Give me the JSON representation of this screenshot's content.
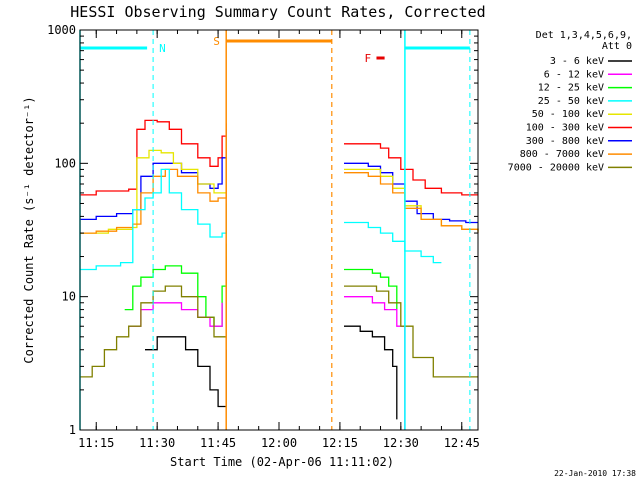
{
  "chart_data": {
    "type": "line",
    "title": "HESSI Observing Summary Count Rates, Corrected",
    "xlabel": "Start Time (02-Apr-06 11:11:02)",
    "ylabel": "Corrected Count Rate (s⁻¹ detector⁻¹)",
    "xlim": [
      "11:11",
      "12:49"
    ],
    "ylim": [
      1,
      1000
    ],
    "yscale": "log",
    "x_ticks": [
      "11:15",
      "11:30",
      "11:45",
      "12:00",
      "12:15",
      "12:30",
      "12:45"
    ],
    "y_ticks": [
      "1",
      "10",
      "100",
      "1000"
    ],
    "timestamp": "22-Jan-2010 17:38",
    "legend": {
      "placement": "right",
      "header": [
        "Det 1,3,4,5,6,9,",
        "Att 0"
      ],
      "entries": [
        {
          "label": "3 - 6 keV",
          "color": "#000000"
        },
        {
          "label": "6 - 12 keV",
          "color": "#ff00ff"
        },
        {
          "label": "12 - 25 keV",
          "color": "#00ff00"
        },
        {
          "label": "25 - 50 keV",
          "color": "#00ffff"
        },
        {
          "label": "50 - 100 keV",
          "color": "#e6e600"
        },
        {
          "label": "100 - 300 keV",
          "color": "#ff0000"
        },
        {
          "label": "300 - 800 keV",
          "color": "#0000ff"
        },
        {
          "label": "800 - 7000 keV",
          "color": "#ff8c00"
        },
        {
          "label": "7000 - 20000 keV",
          "color": "#808000"
        }
      ]
    },
    "markers": {
      "n_label": "N",
      "s_label": "S",
      "f_label": "F",
      "night_dashes": [
        "11:29",
        "12:47"
      ],
      "night_solid": [
        "11:11",
        "12:31"
      ],
      "saa_start": "11:47",
      "saa_end": "12:13",
      "flare_bar": [
        "12:24",
        "12:26"
      ],
      "colors": {
        "night": "#00ffff",
        "saa": "#ff8c00",
        "flare": "#e60000"
      }
    },
    "series": [
      {
        "name": "100 - 300 keV",
        "color": "#ff0000",
        "segments": [
          {
            "x": [
              "11:11",
              "11:15",
              "11:19",
              "11:23",
              "11:25",
              "11:27",
              "11:30",
              "11:33",
              "11:36",
              "11:40",
              "11:43",
              "11:45",
              "11:46",
              "11:47"
            ],
            "y": [
              58,
              62,
              62,
              64,
              180,
              210,
              205,
              180,
              140,
              110,
              95,
              110,
              160,
              200
            ]
          },
          {
            "x": [
              "12:16",
              "12:22",
              "12:25",
              "12:27",
              "12:30",
              "12:33",
              "12:36",
              "12:40",
              "12:45",
              "12:49"
            ],
            "y": [
              140,
              140,
              130,
              110,
              90,
              75,
              65,
              60,
              58,
              58
            ]
          }
        ]
      },
      {
        "name": "300 - 800 keV",
        "color": "#0000ff",
        "segments": [
          {
            "x": [
              "11:11",
              "11:15",
              "11:20",
              "11:24",
              "11:26",
              "11:29",
              "11:32",
              "11:36",
              "11:40",
              "11:43",
              "11:45",
              "11:46",
              "11:47"
            ],
            "y": [
              38,
              40,
              42,
              45,
              80,
              100,
              100,
              85,
              70,
              65,
              70,
              110,
              180
            ]
          },
          {
            "x": [
              "12:16",
              "12:22",
              "12:25",
              "12:28",
              "12:31",
              "12:34",
              "12:38",
              "12:42",
              "12:46",
              "12:49"
            ],
            "y": [
              100,
              95,
              85,
              70,
              52,
              42,
              38,
              37,
              36,
              36
            ]
          }
        ]
      },
      {
        "name": "50 - 100 keV",
        "color": "#e6e600",
        "segments": [
          {
            "x": [
              "11:11",
              "11:18",
              "11:24",
              "11:25",
              "11:28",
              "11:31",
              "11:34",
              "11:36",
              "11:40",
              "11:44",
              "11:47"
            ],
            "y": [
              30,
              32,
              33,
              110,
              125,
              120,
              100,
              90,
              70,
              60,
              150
            ]
          },
          {
            "x": [
              "12:16",
              "12:22",
              "12:25",
              "12:28",
              "12:31",
              "12:35",
              "12:40",
              "12:45",
              "12:49"
            ],
            "y": [
              90,
              90,
              80,
              65,
              48,
              38,
              34,
              32,
              31
            ]
          }
        ]
      },
      {
        "name": "800 - 7000 keV",
        "color": "#ff8c00",
        "segments": [
          {
            "x": [
              "11:11",
              "11:15",
              "11:20",
              "11:24",
              "11:26",
              "11:29",
              "11:32",
              "11:35",
              "11:40",
              "11:43",
              "11:45",
              "11:47"
            ],
            "y": [
              30,
              31,
              33,
              35,
              60,
              80,
              90,
              80,
              60,
              52,
              55,
              130
            ]
          },
          {
            "x": [
              "12:16",
              "12:22",
              "12:25",
              "12:28",
              "12:31",
              "12:35",
              "12:40",
              "12:45",
              "12:49"
            ],
            "y": [
              85,
              80,
              70,
              60,
              46,
              38,
              34,
              32,
              30
            ]
          }
        ]
      },
      {
        "name": "25 - 50 keV",
        "color": "#00ffff",
        "segments": [
          {
            "x": [
              "11:11",
              "11:15",
              "11:18",
              "11:21",
              "11:23",
              "11:24",
              "11:27",
              "11:29",
              "11:31",
              "11:33",
              "11:36",
              "11:40",
              "11:43",
              "11:46",
              "11:47"
            ],
            "y": [
              16,
              17,
              17,
              18,
              18,
              45,
              55,
              60,
              90,
              60,
              45,
              35,
              28,
              30,
              50
            ]
          },
          {
            "x": [
              "12:16",
              "12:22",
              "12:25",
              "12:28",
              "12:31",
              "12:35",
              "12:38",
              "12:40"
            ],
            "y": [
              36,
              33,
              30,
              26,
              22,
              20,
              18,
              18
            ]
          }
        ]
      },
      {
        "name": "12 - 25 keV",
        "color": "#00ff00",
        "segments": [
          {
            "x": [
              "11:22",
              "11:24",
              "11:26",
              "11:29",
              "11:32",
              "11:36",
              "11:40",
              "11:42",
              "11:44",
              "11:46",
              "11:47"
            ],
            "y": [
              8,
              12,
              14,
              16,
              17,
              15,
              10,
              7,
              6,
              12,
              25
            ]
          },
          {
            "x": [
              "12:16",
              "12:20",
              "12:23",
              "12:25",
              "12:27",
              "12:29"
            ],
            "y": [
              16,
              16,
              15,
              14,
              12,
              8
            ]
          }
        ]
      },
      {
        "name": "6 - 12 keV",
        "color": "#ff00ff",
        "segments": [
          {
            "x": [
              "11:23",
              "11:26",
              "11:29",
              "11:32",
              "11:36",
              "11:40",
              "11:43",
              "11:46"
            ],
            "y": [
              6,
              8,
              9,
              9,
              8,
              7,
              6,
              9
            ]
          },
          {
            "x": [
              "12:16",
              "12:20",
              "12:23",
              "12:26",
              "12:29",
              "12:31"
            ],
            "y": [
              10,
              10,
              9,
              8,
              6,
              1
            ]
          }
        ]
      },
      {
        "name": "7000 - 20000 keV",
        "color": "#808000",
        "segments": [
          {
            "x": [
              "11:11",
              "11:14",
              "11:17",
              "11:20",
              "11:23",
              "11:26",
              "11:29",
              "11:32",
              "11:36",
              "11:40",
              "11:44",
              "11:47"
            ],
            "y": [
              2.5,
              3,
              4,
              5,
              6,
              9,
              11,
              12,
              10,
              7,
              5,
              20
            ]
          },
          {
            "x": [
              "12:16",
              "12:20",
              "12:24",
              "12:27",
              "12:30",
              "12:33",
              "12:38",
              "12:45",
              "12:49"
            ],
            "y": [
              12,
              12,
              11,
              9,
              6,
              3.5,
              2.5,
              2.5,
              2.5
            ]
          }
        ]
      },
      {
        "name": "3 - 6 keV",
        "color": "#000000",
        "segments": [
          {
            "x": [
              "11:27",
              "11:30",
              "11:33",
              "11:37",
              "11:40",
              "11:43",
              "11:45",
              "11:47"
            ],
            "y": [
              4,
              5,
              5,
              4,
              3,
              2,
              1.5,
              4
            ]
          },
          {
            "x": [
              "12:16",
              "12:20",
              "12:23",
              "12:26",
              "12:28",
              "12:29"
            ],
            "y": [
              6,
              5.5,
              5,
              4,
              3,
              1.2
            ]
          }
        ]
      }
    ]
  }
}
